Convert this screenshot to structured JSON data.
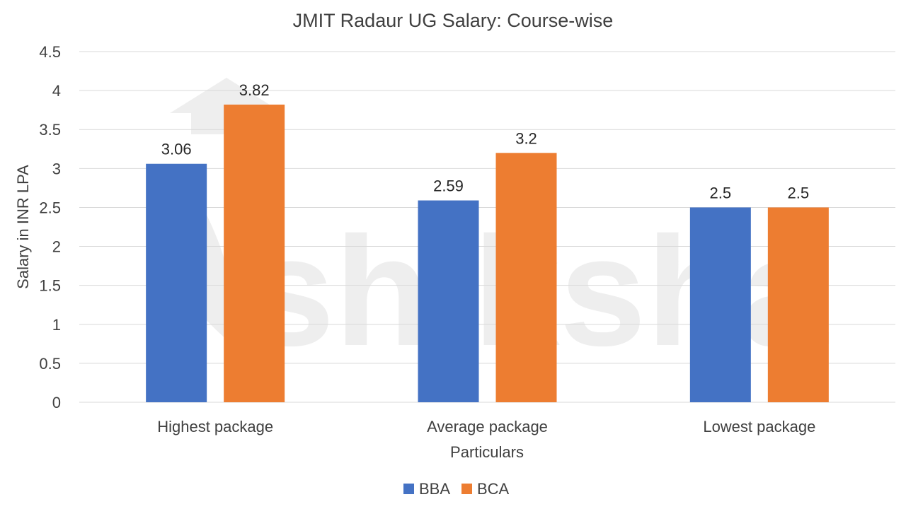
{
  "chart_data": {
    "type": "bar",
    "title": "JMIT Radaur UG Salary: Course-wise",
    "xlabel": "Particulars",
    "ylabel": "Salary in INR LPA",
    "categories": [
      "Highest package",
      "Average package",
      "Lowest package"
    ],
    "series": [
      {
        "name": "BBA",
        "values": [
          3.06,
          2.59,
          2.5
        ],
        "labels": [
          "3.06",
          "2.59",
          "2.5"
        ],
        "color": "#4472C4"
      },
      {
        "name": "BCA",
        "values": [
          3.82,
          3.2,
          2.5
        ],
        "labels": [
          "3.82",
          "3.2",
          "2.5"
        ],
        "color": "#ED7D31"
      }
    ],
    "ylim": [
      0,
      4.5
    ],
    "yticks": [
      "0",
      "0.5",
      "1",
      "1.5",
      "2",
      "2.5",
      "3",
      "3.5",
      "4",
      "4.5"
    ],
    "grid": true,
    "legend": "bottom",
    "watermark": "shiksha"
  }
}
